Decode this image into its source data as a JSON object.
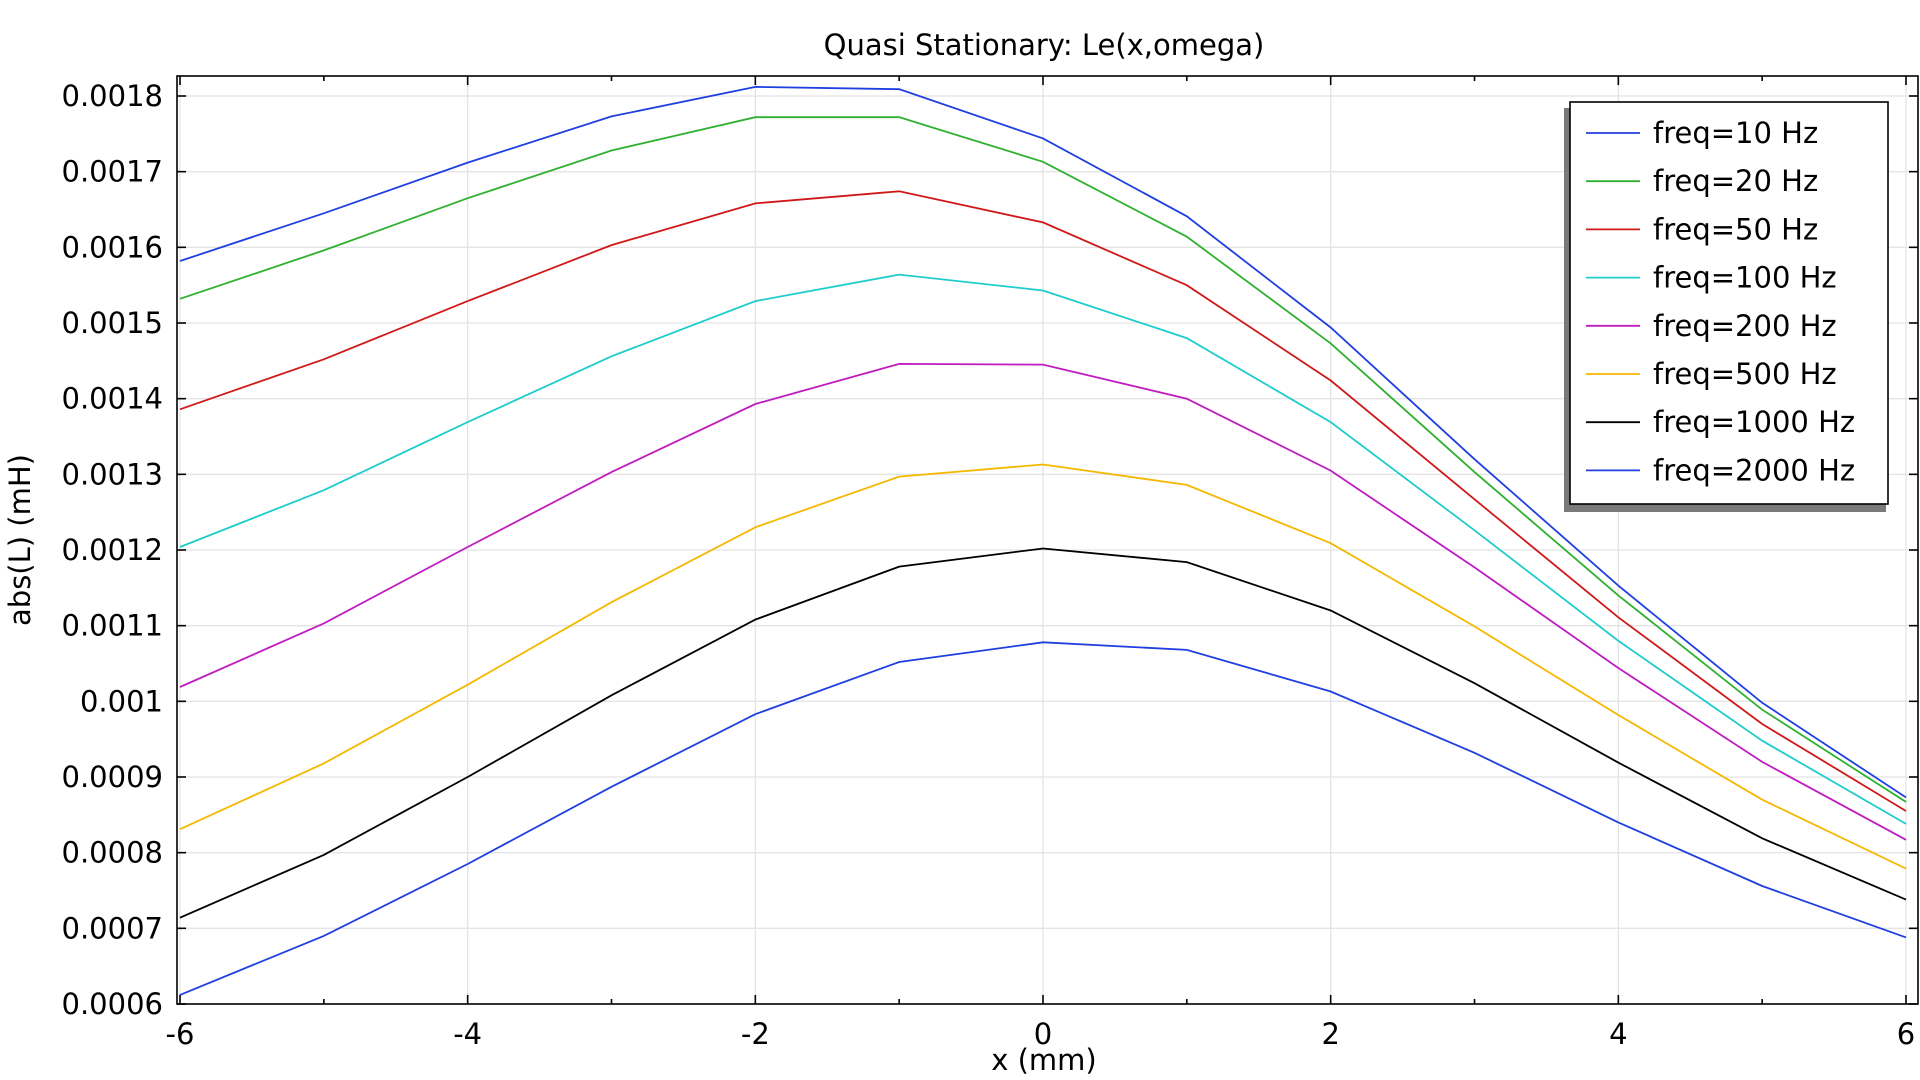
{
  "chart_data": {
    "type": "line",
    "title": "Quasi Stationary: Le(x,omega)",
    "xlabel": "x (mm)",
    "ylabel": "abs(L) (mH)",
    "xlim": [
      -6,
      6
    ],
    "ylim": [
      0.0006,
      0.0018
    ],
    "xticks": [
      "-6",
      "-4",
      "-2",
      "0",
      "2",
      "4",
      "6"
    ],
    "yticks": [
      "0.0006",
      "0.0007",
      "0.0008",
      "0.0009",
      "0.001",
      "0.0011",
      "0.0012",
      "0.0013",
      "0.0014",
      "0.0015",
      "0.0016",
      "0.0017",
      "0.0018"
    ],
    "grid": true,
    "legend_position": "top-right",
    "x": [
      -6,
      -5,
      -4,
      -3,
      -2,
      -1,
      0,
      1,
      2,
      3,
      4,
      5,
      6
    ],
    "series": [
      {
        "name": "freq=10 Hz",
        "color": "#1f3fe0",
        "values": [
          0.001582,
          0.001645,
          0.001712,
          0.001773,
          0.001812,
          0.001809,
          0.001744,
          0.001641,
          0.001494,
          0.00132,
          0.001153,
          0.000998,
          0.000873
        ]
      },
      {
        "name": "freq=20 Hz",
        "color": "#2fb02f",
        "values": [
          0.001532,
          0.001596,
          0.001665,
          0.001728,
          0.001772,
          0.001772,
          0.001713,
          0.001614,
          0.001473,
          0.001303,
          0.00114,
          0.000989,
          0.000867
        ]
      },
      {
        "name": "freq=50 Hz",
        "color": "#d01818",
        "values": [
          0.001386,
          0.001452,
          0.001529,
          0.001603,
          0.001658,
          0.001674,
          0.001633,
          0.00155,
          0.001424,
          0.001267,
          0.001111,
          0.00097,
          0.000855
        ]
      },
      {
        "name": "freq=100 Hz",
        "color": "#1fcccc",
        "values": [
          0.001204,
          0.001279,
          0.001369,
          0.001456,
          0.001529,
          0.001564,
          0.001543,
          0.00148,
          0.001369,
          0.001226,
          0.00108,
          0.000948,
          0.000838
        ]
      },
      {
        "name": "freq=200 Hz",
        "color": "#c01cc0",
        "values": [
          0.001019,
          0.001103,
          0.001204,
          0.001303,
          0.001393,
          0.001446,
          0.001445,
          0.0014,
          0.001305,
          0.001177,
          0.001044,
          0.00092,
          0.000817
        ]
      },
      {
        "name": "freq=500 Hz",
        "color": "#f5b800",
        "values": [
          0.000831,
          0.000918,
          0.001022,
          0.001131,
          0.00123,
          0.001297,
          0.001313,
          0.001286,
          0.001209,
          0.001099,
          0.000982,
          0.00087,
          0.000779
        ]
      },
      {
        "name": "freq=1000 Hz",
        "color": "#000000",
        "values": [
          0.000714,
          0.000797,
          0.0009,
          0.001008,
          0.001108,
          0.001178,
          0.001202,
          0.001184,
          0.00112,
          0.001024,
          0.000919,
          0.000819,
          0.000738
        ]
      },
      {
        "name": "freq=2000 Hz",
        "color": "#1f3fe0",
        "values": [
          0.000612,
          0.00069,
          0.000785,
          0.000887,
          0.000983,
          0.001052,
          0.001078,
          0.001068,
          0.001013,
          0.000932,
          0.00084,
          0.000756,
          0.000688
        ]
      }
    ]
  }
}
